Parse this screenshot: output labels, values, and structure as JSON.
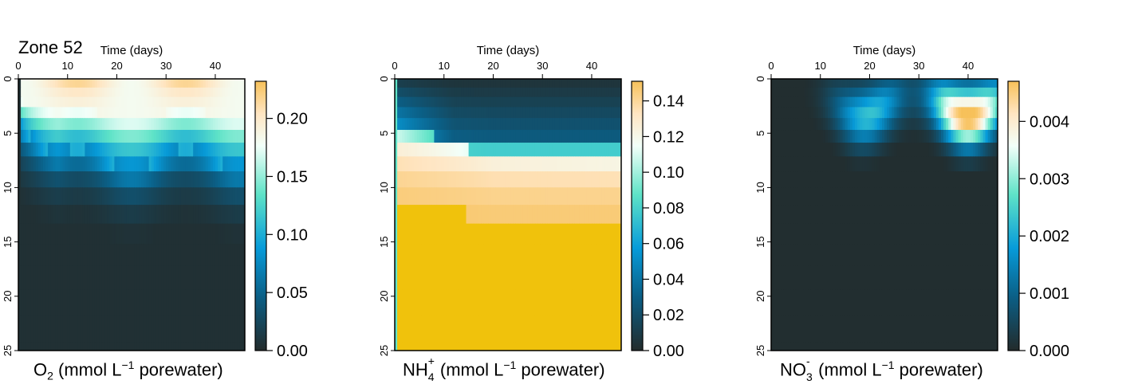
{
  "title": "Zone 52",
  "chart_data": [
    {
      "type": "heatmap",
      "time_label": "Time (days)",
      "time_ticks": [
        0,
        10,
        20,
        30,
        40
      ],
      "depth_ticks": [
        0,
        5,
        10,
        15,
        20,
        25
      ],
      "xlim": [
        0,
        46
      ],
      "ylim": [
        0,
        25
      ],
      "colorbar_ticks": [
        "0.00",
        "0.05",
        "0.10",
        "0.15",
        "0.20"
      ],
      "colorbar_range": [
        0,
        0.232
      ],
      "label": {
        "species": "O",
        "sub": "2",
        "sup": "",
        "unit_pre": " (mmol L",
        "unit_sup": "−1",
        "unit_post": " porewater)"
      }
    },
    {
      "type": "heatmap",
      "time_label": "Time (days)",
      "time_ticks": [
        0,
        10,
        20,
        30,
        40
      ],
      "depth_ticks": [
        0,
        5,
        10,
        15,
        20,
        25
      ],
      "xlim": [
        0,
        46
      ],
      "ylim": [
        0,
        25
      ],
      "colorbar_ticks": [
        "0.00",
        "0.02",
        "0.04",
        "0.06",
        "0.08",
        "0.10",
        "0.12",
        "0.14"
      ],
      "colorbar_range": [
        0,
        0.151
      ],
      "label": {
        "species": "NH",
        "sub": "4",
        "sup": "+",
        "unit_pre": " (mmol L",
        "unit_sup": "−1",
        "unit_post": " porewater)"
      }
    },
    {
      "type": "heatmap",
      "time_label": "Time (days)",
      "time_ticks": [
        0,
        10,
        20,
        30,
        40
      ],
      "depth_ticks": [
        0,
        5,
        10,
        15,
        20,
        25
      ],
      "xlim": [
        0,
        46
      ],
      "ylim": [
        0,
        25
      ],
      "colorbar_ticks": [
        "0.000",
        "0.001",
        "0.002",
        "0.003",
        "0.004"
      ],
      "colorbar_range": [
        0,
        0.0047
      ],
      "label": {
        "species": "NO",
        "sub": "3",
        "sup": "-",
        "unit_pre": " (mmol L",
        "unit_sup": "−1",
        "unit_post": " porewater)"
      }
    }
  ],
  "colors": {
    "scale": [
      "#232b2b",
      "#0b5f86",
      "#079bd9",
      "#5fe3c7",
      "#f2fff9",
      "#ffe5c2",
      "#f7c15a"
    ],
    "nh4_fill": "#f0c20c",
    "frame": "#000000"
  }
}
